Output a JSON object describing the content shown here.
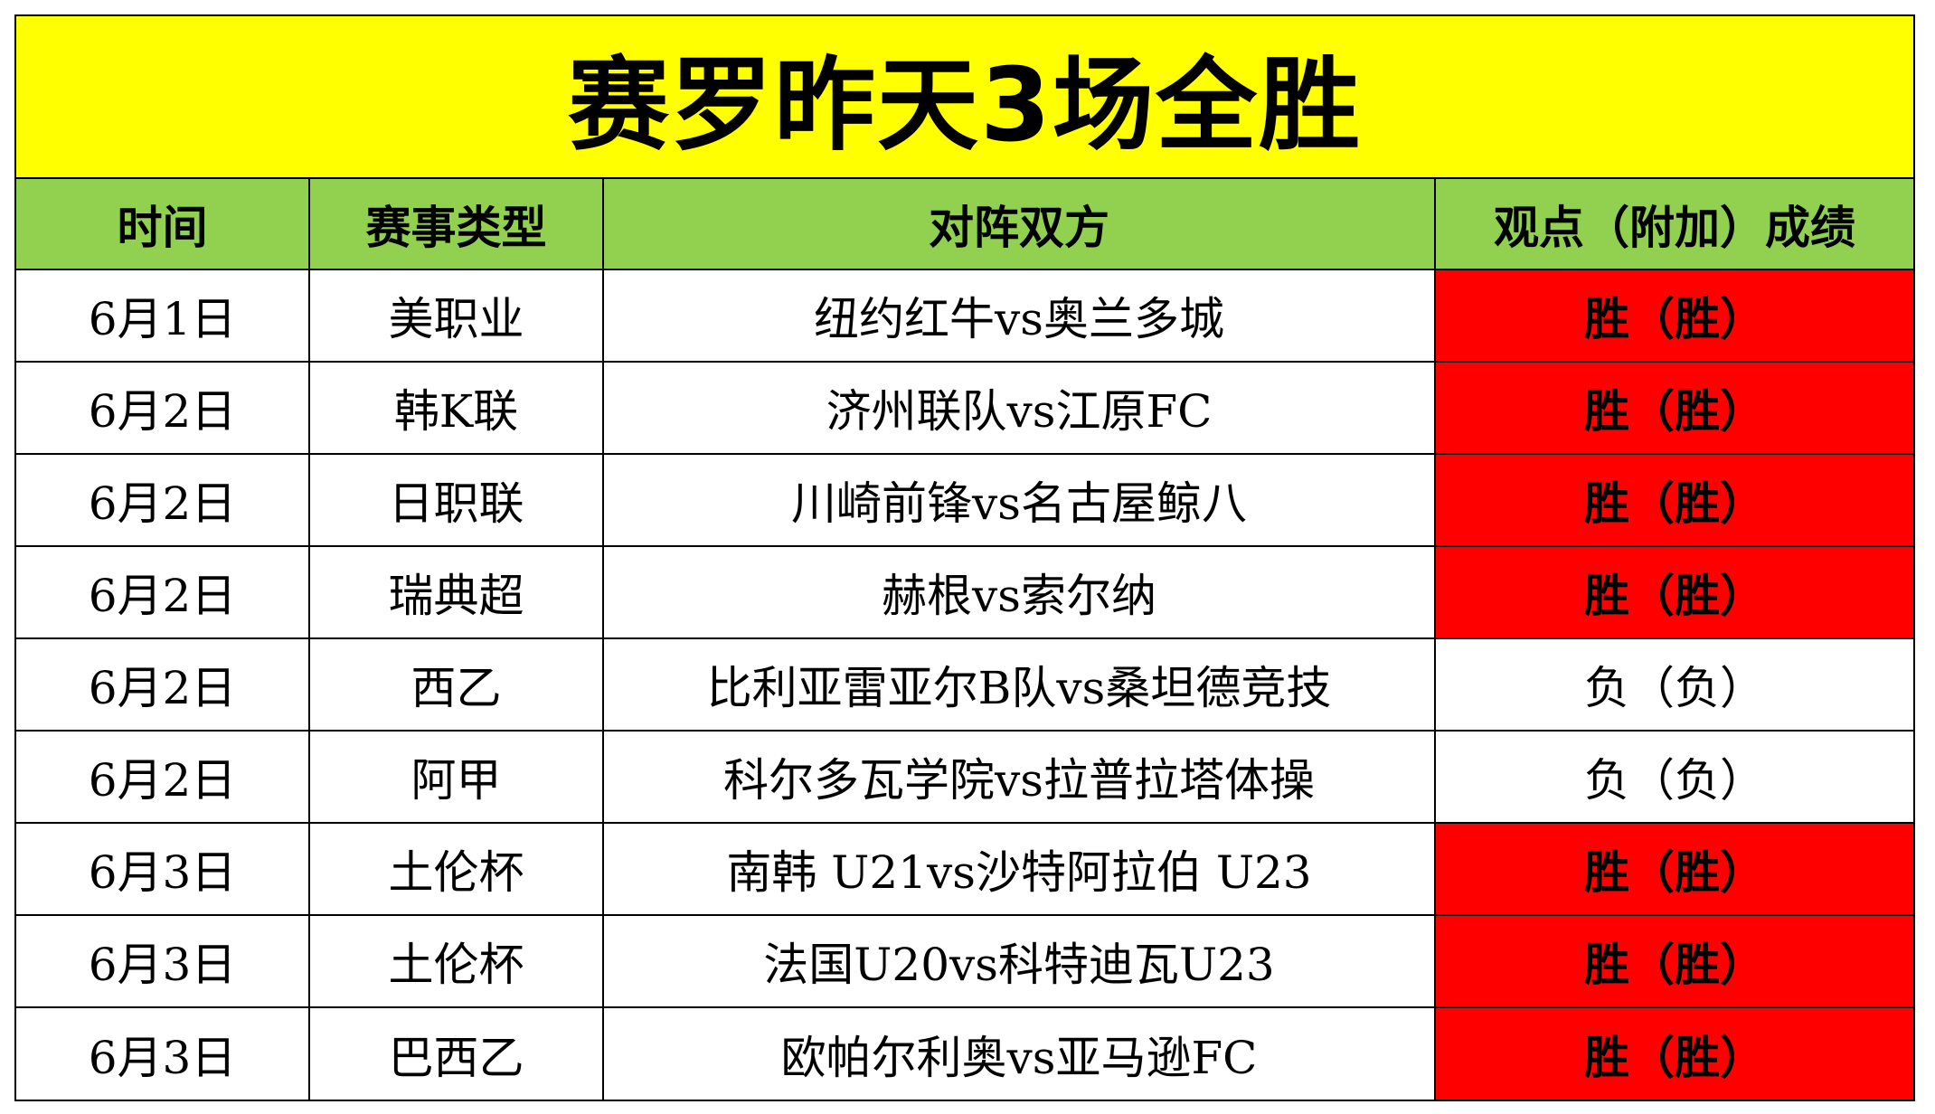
{
  "title": "赛罗昨天3场全胜",
  "colors": {
    "title_bg": "#ffff00",
    "header_bg": "#92d050",
    "win_bg": "#ff0000",
    "loss_bg": "#ffffff"
  },
  "headers": {
    "time": "时间",
    "type": "赛事类型",
    "match": "对阵双方",
    "result": "观点（附加）成绩"
  },
  "rows": [
    {
      "time": "6月1日",
      "type": "美职业",
      "match": "纽约红牛vs奥兰多城",
      "result": "胜（胜）",
      "outcome": "win"
    },
    {
      "time": "6月2日",
      "type": "韩K联",
      "match": "济州联队vs江原FC",
      "result": "胜（胜）",
      "outcome": "win"
    },
    {
      "time": "6月2日",
      "type": "日职联",
      "match": "川崎前锋vs名古屋鲸八",
      "result": "胜（胜）",
      "outcome": "win"
    },
    {
      "time": "6月2日",
      "type": "瑞典超",
      "match": "赫根vs索尔纳",
      "result": "胜（胜）",
      "outcome": "win"
    },
    {
      "time": "6月2日",
      "type": "西乙",
      "match": "比利亚雷亚尔B队vs桑坦德竞技",
      "result": "负（负）",
      "outcome": "loss"
    },
    {
      "time": "6月2日",
      "type": "阿甲",
      "match": "科尔多瓦学院vs拉普拉塔体操",
      "result": "负（负）",
      "outcome": "loss"
    },
    {
      "time": "6月3日",
      "type": "土伦杯",
      "match": "南韩 U21vs沙特阿拉伯 U23",
      "result": "胜（胜）",
      "outcome": "win"
    },
    {
      "time": "6月3日",
      "type": "土伦杯",
      "match": "法国U20vs科特迪瓦U23",
      "result": "胜（胜）",
      "outcome": "win"
    },
    {
      "time": "6月3日",
      "type": "巴西乙",
      "match": "欧帕尔利奥vs亚马逊FC",
      "result": "胜（胜）",
      "outcome": "win"
    }
  ]
}
